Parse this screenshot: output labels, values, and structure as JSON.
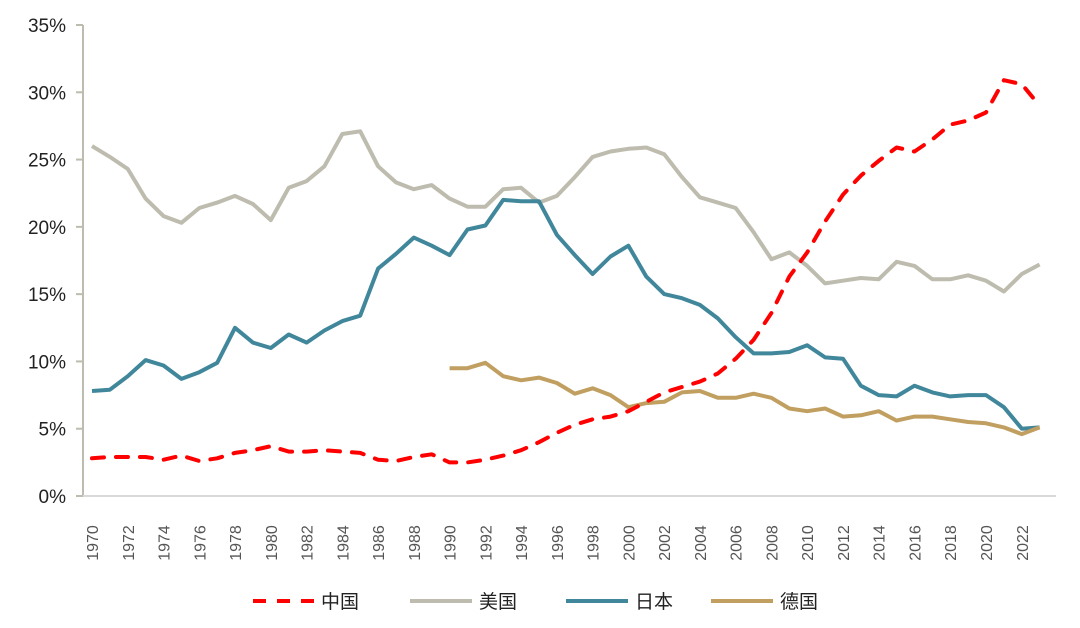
{
  "chart_data": {
    "type": "line",
    "title": "",
    "xlabel": "",
    "ylabel": "",
    "ylim": [
      0,
      35
    ],
    "y_ticks": [
      "0%",
      "5%",
      "10%",
      "15%",
      "20%",
      "25%",
      "30%",
      "35%"
    ],
    "y_tick_values": [
      0,
      5,
      10,
      15,
      20,
      25,
      30,
      35
    ],
    "x_range": [
      1970,
      2023
    ],
    "x_ticks": [
      "1970",
      "1972",
      "1974",
      "1976",
      "1978",
      "1980",
      "1982",
      "1984",
      "1986",
      "1988",
      "1990",
      "1992",
      "1994",
      "1996",
      "1998",
      "2000",
      "2002",
      "2004",
      "2006",
      "2008",
      "2010",
      "2012",
      "2014",
      "2016",
      "2018",
      "2020",
      "2022"
    ],
    "grid": false,
    "legend_position": "bottom",
    "series": [
      {
        "name": "中国",
        "color": "#ff0000",
        "style": "dashed",
        "x": [
          1970,
          1971,
          1972,
          1973,
          1974,
          1975,
          1976,
          1977,
          1978,
          1979,
          1980,
          1981,
          1982,
          1983,
          1984,
          1985,
          1986,
          1987,
          1988,
          1989,
          1990,
          1991,
          1992,
          1993,
          1994,
          1995,
          1996,
          1997,
          1998,
          1999,
          2000,
          2001,
          2002,
          2003,
          2004,
          2005,
          2006,
          2007,
          2008,
          2009,
          2010,
          2011,
          2012,
          2013,
          2014,
          2015,
          2016,
          2017,
          2018,
          2019,
          2020,
          2021,
          2022,
          2023
        ],
        "values": [
          2.8,
          2.9,
          2.9,
          2.9,
          2.7,
          3.0,
          2.6,
          2.8,
          3.2,
          3.4,
          3.7,
          3.3,
          3.3,
          3.4,
          3.3,
          3.2,
          2.7,
          2.6,
          2.9,
          3.1,
          2.5,
          2.5,
          2.7,
          3.0,
          3.4,
          4.0,
          4.7,
          5.3,
          5.7,
          5.9,
          6.3,
          7.0,
          7.7,
          8.1,
          8.5,
          9.1,
          10.2,
          11.6,
          13.6,
          16.3,
          18.1,
          20.4,
          22.4,
          23.8,
          24.9,
          25.9,
          25.6,
          26.5,
          27.6,
          27.9,
          28.5,
          30.9,
          30.6,
          29.0
        ]
      },
      {
        "name": "美国",
        "color": "#bdbcae",
        "style": "solid",
        "x": [
          1970,
          1971,
          1972,
          1973,
          1974,
          1975,
          1976,
          1977,
          1978,
          1979,
          1980,
          1981,
          1982,
          1983,
          1984,
          1985,
          1986,
          1987,
          1988,
          1989,
          1990,
          1991,
          1992,
          1993,
          1994,
          1995,
          1996,
          1997,
          1998,
          1999,
          2000,
          2001,
          2002,
          2003,
          2004,
          2005,
          2006,
          2007,
          2008,
          2009,
          2010,
          2011,
          2012,
          2013,
          2014,
          2015,
          2016,
          2017,
          2018,
          2019,
          2020,
          2021,
          2022,
          2023
        ],
        "values": [
          26.0,
          25.2,
          24.3,
          22.1,
          20.8,
          20.3,
          21.4,
          21.8,
          22.3,
          21.7,
          20.5,
          22.9,
          23.4,
          24.5,
          26.9,
          27.1,
          24.5,
          23.3,
          22.8,
          23.1,
          22.1,
          21.5,
          21.5,
          22.8,
          22.9,
          21.8,
          22.3,
          23.7,
          25.2,
          25.6,
          25.8,
          25.9,
          25.4,
          23.7,
          22.2,
          21.8,
          21.4,
          19.6,
          17.6,
          18.1,
          17.1,
          15.8,
          16.0,
          16.2,
          16.1,
          17.4,
          17.1,
          16.1,
          16.1,
          16.4,
          16.0,
          15.2,
          16.5,
          17.2
        ]
      },
      {
        "name": "日本",
        "color": "#41879b",
        "style": "solid",
        "x": [
          1970,
          1971,
          1972,
          1973,
          1974,
          1975,
          1976,
          1977,
          1978,
          1979,
          1980,
          1981,
          1982,
          1983,
          1984,
          1985,
          1986,
          1987,
          1988,
          1989,
          1990,
          1991,
          1992,
          1993,
          1994,
          1995,
          1996,
          1997,
          1998,
          1999,
          2000,
          2001,
          2002,
          2003,
          2004,
          2005,
          2006,
          2007,
          2008,
          2009,
          2010,
          2011,
          2012,
          2013,
          2014,
          2015,
          2016,
          2017,
          2018,
          2019,
          2020,
          2021,
          2022,
          2023
        ],
        "values": [
          7.8,
          7.9,
          8.9,
          10.1,
          9.7,
          8.7,
          9.2,
          9.9,
          12.5,
          11.4,
          11.0,
          12.0,
          11.4,
          12.3,
          13.0,
          13.4,
          16.9,
          18.0,
          19.2,
          18.6,
          17.9,
          19.8,
          20.1,
          22.0,
          21.9,
          21.9,
          19.4,
          17.9,
          16.5,
          17.8,
          18.6,
          16.3,
          15.0,
          14.7,
          14.2,
          13.2,
          11.8,
          10.6,
          10.6,
          10.7,
          11.2,
          10.3,
          10.2,
          8.2,
          7.5,
          7.4,
          8.2,
          7.7,
          7.4,
          7.5,
          7.5,
          6.6,
          5.0,
          5.1
        ]
      },
      {
        "name": "德国",
        "color": "#c09f60",
        "style": "solid",
        "x": [
          1990,
          1991,
          1992,
          1993,
          1994,
          1995,
          1996,
          1997,
          1998,
          1999,
          2000,
          2001,
          2002,
          2003,
          2004,
          2005,
          2006,
          2007,
          2008,
          2009,
          2010,
          2011,
          2012,
          2013,
          2014,
          2015,
          2016,
          2017,
          2018,
          2019,
          2020,
          2021,
          2022,
          2023
        ],
        "values": [
          9.5,
          9.5,
          9.9,
          8.9,
          8.6,
          8.8,
          8.4,
          7.6,
          8.0,
          7.5,
          6.6,
          6.9,
          7.0,
          7.7,
          7.8,
          7.3,
          7.3,
          7.6,
          7.3,
          6.5,
          6.3,
          6.5,
          5.9,
          6.0,
          6.3,
          5.6,
          5.9,
          5.9,
          5.7,
          5.5,
          5.4,
          5.1,
          4.6,
          5.1
        ]
      }
    ]
  }
}
